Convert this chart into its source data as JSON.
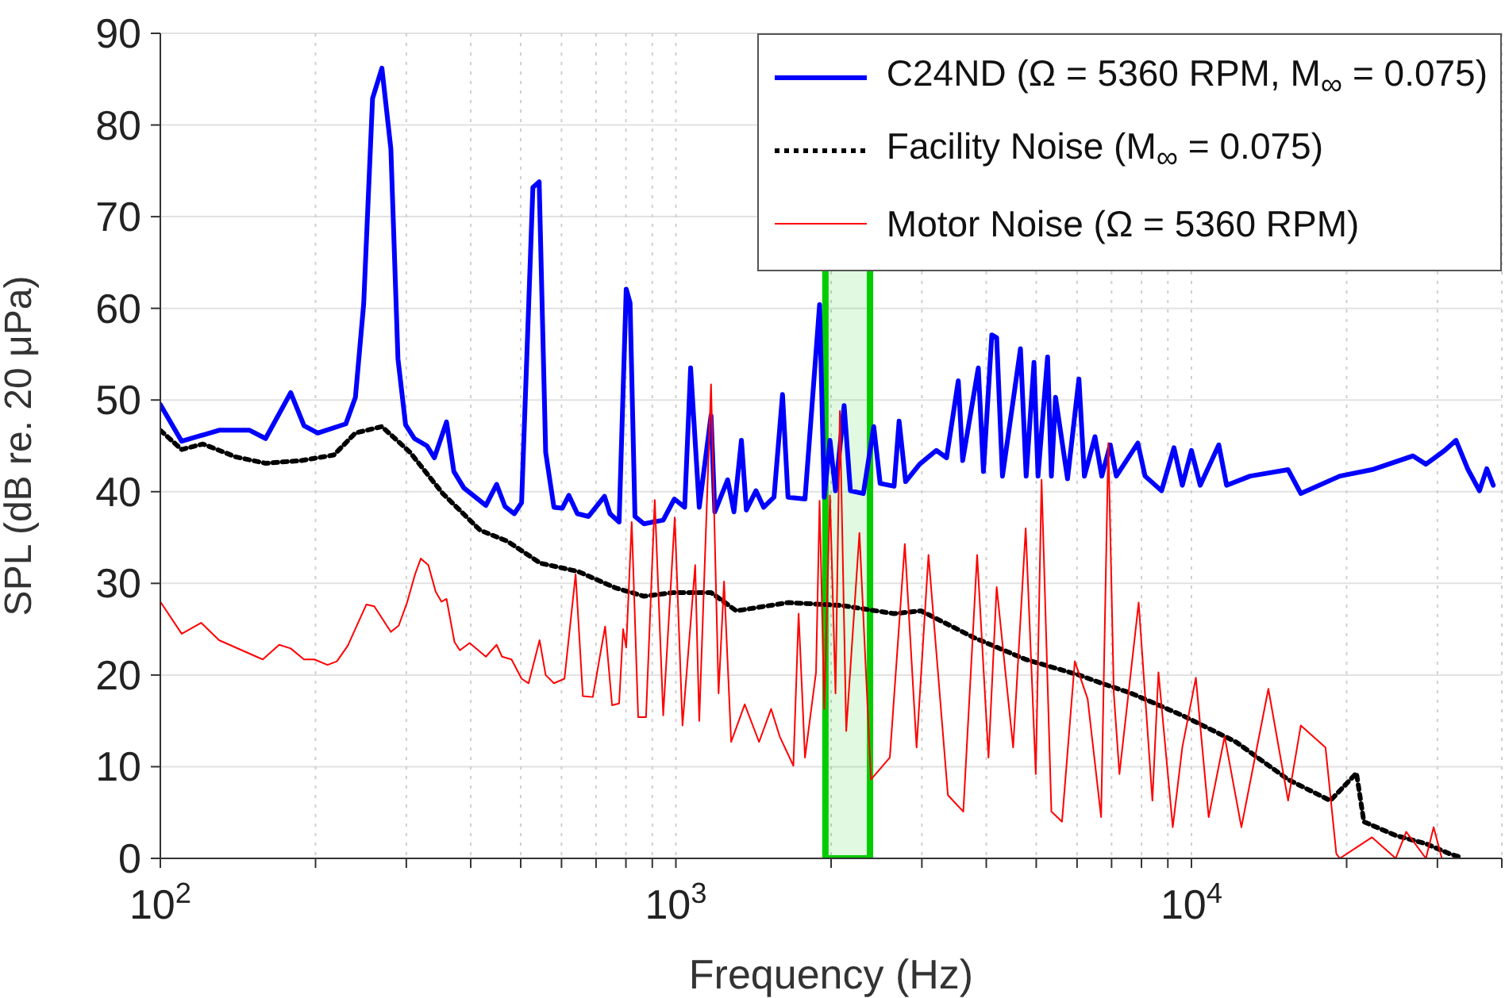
{
  "chart_data": {
    "type": "line",
    "xlabel": "Frequency (Hz)",
    "ylabel": "SPL (dB re. 20 μPa)",
    "log": "x",
    "xlim": [
      100,
      40000
    ],
    "ylim": [
      0,
      90
    ],
    "xticks": [
      {
        "value": 100,
        "label": "10$^{2}$"
      },
      {
        "value": 200,
        "label": null
      },
      {
        "value": 300,
        "label": null
      },
      {
        "value": 400,
        "label": null
      },
      {
        "value": 500,
        "label": null
      },
      {
        "value": 600,
        "label": null
      },
      {
        "value": 700,
        "label": null
      },
      {
        "value": 800,
        "label": null
      },
      {
        "value": 900,
        "label": null
      },
      {
        "value": 1000,
        "label": "10$^{3}$"
      },
      {
        "value": 2000,
        "label": null
      },
      {
        "value": 3000,
        "label": null
      },
      {
        "value": 4000,
        "label": null
      },
      {
        "value": 5000,
        "label": null
      },
      {
        "value": 6000,
        "label": null
      },
      {
        "value": 7000,
        "label": null
      },
      {
        "value": 8000,
        "label": null
      },
      {
        "value": 9000,
        "label": null
      },
      {
        "value": 10000,
        "label": "10$^{4}$"
      },
      {
        "value": 20000,
        "label": null
      },
      {
        "value": 30000,
        "label": null
      },
      {
        "value": 40000,
        "label": null
      }
    ],
    "yticks": [
      0,
      10,
      20,
      30,
      40,
      50,
      60,
      70,
      80,
      90
    ],
    "grid": true,
    "legend": "top right",
    "bands": [
      {
        "axis": "x",
        "from": 1950,
        "to": 2380,
        "color": "#00cc00"
      }
    ],
    "series": [
      {
        "name": "C24ND (Ω = 5360 RPM, M$_{∞}$ = 0.075)",
        "color": "#0000ff",
        "line_style": "solid",
        "x": [
          100,
          110,
          130,
          149,
          160,
          179,
          190,
          202,
          229,
          239,
          248,
          258,
          269,
          280,
          289,
          299,
          311,
          329,
          340,
          359,
          371,
          388,
          428,
          449,
          466,
          486,
          502,
          528,
          543,
          559,
          580,
          602,
          620,
          644,
          677,
          727,
          745,
          776,
          801,
          815,
          833,
          867,
          945,
          993,
          1040,
          1068,
          1110,
          1170,
          1190,
          1260,
          1296,
          1340,
          1370,
          1430,
          1480,
          1550,
          1610,
          1650,
          1780,
          1900,
          1940,
          1990,
          2040,
          2120,
          2180,
          2310,
          2420,
          2490,
          2650,
          2710,
          2790,
          2970,
          3200,
          3350,
          3530,
          3600,
          3860,
          3950,
          4100,
          4190,
          4300,
          4660,
          4780,
          4950,
          5040,
          5260,
          5350,
          5450,
          5750,
          6050,
          6200,
          6500,
          6700,
          6960,
          7150,
          7870,
          8130,
          8750,
          9250,
          9600,
          10000,
          10400,
          11300,
          11700,
          13000,
          15400,
          16300,
          19400,
          22400,
          26900,
          28500,
          31000,
          32600,
          34400,
          36200,
          37400,
          38500
        ],
        "values": [
          49.5,
          45.5,
          46.7,
          46.7,
          45.8,
          50.8,
          47.2,
          46.4,
          47.4,
          50.3,
          60.5,
          82.9,
          86.2,
          77.4,
          54.5,
          47.3,
          45.8,
          45,
          43.7,
          47.6,
          42.2,
          40.4,
          38.5,
          40.8,
          38.4,
          37.6,
          38.8,
          73.2,
          73.8,
          44.3,
          38.3,
          38.2,
          39.6,
          37.6,
          37.3,
          39.5,
          37.6,
          36.7,
          62.1,
          60.6,
          37.3,
          36.5,
          36.9,
          39.2,
          38.3,
          53.5,
          38.3,
          48.3,
          37.8,
          41.3,
          37.8,
          45.6,
          38,
          40.1,
          38.3,
          39.4,
          50.6,
          39.4,
          39.2,
          60.4,
          39.4,
          45.6,
          40.1,
          49.4,
          40.1,
          39.8,
          47.1,
          40.9,
          40.6,
          47.7,
          41.1,
          43,
          44.5,
          43.7,
          52.1,
          43.4,
          53.5,
          42.2,
          57.1,
          56.8,
          41.7,
          55.6,
          41.7,
          54.1,
          41.7,
          54.7,
          41.7,
          50.3,
          41.4,
          52.3,
          41.7,
          46,
          41.7,
          45.1,
          41.7,
          45.3,
          41.7,
          40.1,
          44.8,
          40.7,
          44.5,
          40.7,
          45.1,
          40.7,
          41.7,
          42.4,
          39.8,
          41.7,
          42.4,
          43.9,
          43,
          44.5,
          45.6,
          42.4,
          40.1,
          42.5,
          40.7
        ]
      },
      {
        "name": "Facility Noise (M$_{∞}$ = 0.075)",
        "color": "#000000",
        "line_style": "dotted",
        "x": [
          100,
          110,
          121,
          140,
          160,
          188,
          217,
          239,
          269,
          305,
          353,
          417,
          471,
          546,
          646,
          764,
          867,
          993,
          1170,
          1310,
          1650,
          2090,
          2650,
          2990,
          3780,
          4770,
          6050,
          6700,
          7650,
          9600,
          12200,
          15400,
          18600,
          20900,
          21600,
          24900,
          28500,
          31700,
          33400
        ],
        "values": [
          46.7,
          44.6,
          45.2,
          43.8,
          43.1,
          43.4,
          44,
          46.4,
          47.1,
          44.3,
          39.8,
          35.8,
          34.6,
          32.2,
          31.3,
          29.5,
          28.6,
          29,
          29,
          27,
          27.9,
          27.6,
          26.7,
          27,
          24.1,
          21.7,
          20,
          19.1,
          18,
          15.6,
          12.7,
          8.6,
          6.3,
          9.3,
          4,
          2.5,
          1.6,
          0.5,
          0.1
        ]
      },
      {
        "name": "Motor Noise (Ω = 5360 RPM)",
        "color": "#ff0000",
        "line_style": "solid",
        "x": [
          100,
          110,
          120,
          130,
          158,
          170,
          179,
          190,
          199,
          211,
          220,
          231,
          251,
          260,
          280,
          290,
          301,
          312,
          320,
          331,
          342,
          351,
          359,
          372,
          381,
          398,
          428,
          449,
          460,
          480,
          502,
          518,
          544,
          559,
          580,
          608,
          639,
          660,
          690,
          729,
          752,
          776,
          790,
          801,
          821,
          845,
          875,
          910,
          945,
          995,
          1030,
          1090,
          1110,
          1170,
          1210,
          1240,
          1280,
          1360,
          1450,
          1530,
          1590,
          1690,
          1730,
          1780,
          1870,
          1900,
          1940,
          1990,
          2040,
          2080,
          2140,
          2270,
          2390,
          2600,
          2780,
          2930,
          3090,
          3370,
          3610,
          3840,
          4040,
          4190,
          4510,
          4770,
          4990,
          5120,
          5350,
          5610,
          5940,
          6290,
          6680,
          6900,
          7070,
          7250,
          7900,
          8400,
          8630,
          9200,
          9600,
          10200,
          10800,
          11600,
          12500,
          14100,
          15400,
          16300,
          18200,
          19100,
          19400,
          22400,
          24900,
          26100,
          28500,
          29500,
          30600
        ],
        "values": [
          28,
          24.5,
          25.7,
          23.8,
          21.7,
          23.3,
          22.9,
          21.7,
          21.7,
          21.1,
          21.5,
          23.2,
          27.7,
          27.5,
          24.7,
          25.4,
          27.9,
          31,
          32.7,
          32,
          29.1,
          28,
          28.3,
          23.6,
          22.7,
          23.5,
          22,
          23.3,
          22,
          21.7,
          19.6,
          19.1,
          23.8,
          20,
          19.1,
          19.6,
          31,
          17.7,
          17.6,
          25.3,
          16.7,
          16.9,
          25,
          23,
          36.7,
          15.4,
          15.4,
          39.1,
          15.6,
          37.2,
          14.5,
          32,
          15,
          51.7,
          18,
          30.2,
          12.7,
          16.8,
          12.7,
          16.3,
          13.3,
          10.1,
          26.7,
          11,
          20.3,
          39,
          16.3,
          39.6,
          18,
          48.8,
          13.9,
          35.5,
          8.6,
          11,
          34.3,
          12.1,
          33.1,
          6.9,
          5.1,
          33.1,
          11,
          29.6,
          12.1,
          36,
          9.2,
          41.3,
          5.1,
          4,
          21.5,
          17.4,
          4.5,
          45.3,
          18,
          9.2,
          27.9,
          6.3,
          20.3,
          3.4,
          12.1,
          19.7,
          4.5,
          13.3,
          3.4,
          18.5,
          6.3,
          14.5,
          12.1,
          0.5,
          0,
          2.3,
          0,
          2.9,
          0,
          3.4,
          0
        ]
      }
    ]
  }
}
